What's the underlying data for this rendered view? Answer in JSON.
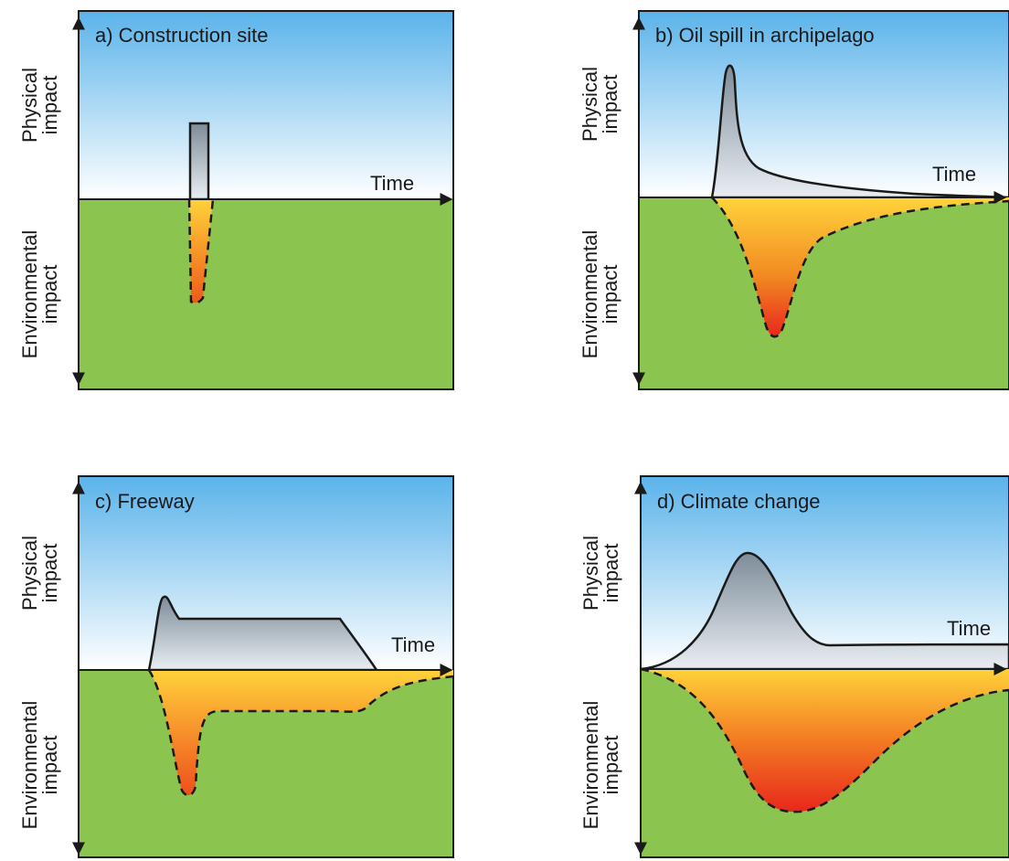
{
  "figure": {
    "panels": [
      {
        "id": "a",
        "title": "a) Construction site",
        "axis_up_label": [
          "Physical",
          "impact"
        ],
        "axis_down_label": [
          "Environmental",
          "impact"
        ],
        "time_label": "Time"
      },
      {
        "id": "b",
        "title": "b) Oil spill in archipelago",
        "axis_up_label": [
          "Physical",
          "impact"
        ],
        "axis_down_label": [
          "Environmental",
          "impact"
        ],
        "time_label": "Time"
      },
      {
        "id": "c",
        "title": "c) Freeway",
        "axis_up_label": [
          "Physical",
          "impact"
        ],
        "axis_down_label": [
          "Environmental",
          "impact"
        ],
        "time_label": "Time"
      },
      {
        "id": "d",
        "title": "d) Climate change",
        "axis_up_label": [
          "Physical",
          "impact"
        ],
        "axis_down_label": [
          "Environmental",
          "impact"
        ],
        "time_label": "Time"
      }
    ]
  },
  "colors": {
    "sky_top": "#5ab3ea",
    "sky_bottom": "#ffffff",
    "ground": "#8cc450",
    "physical_top": "#7e8c99",
    "physical_bottom": "#e9eef3",
    "environmental_top": "#ffd23a",
    "environmental_bottom": "#e8251c",
    "line": "#1a1a1a"
  }
}
